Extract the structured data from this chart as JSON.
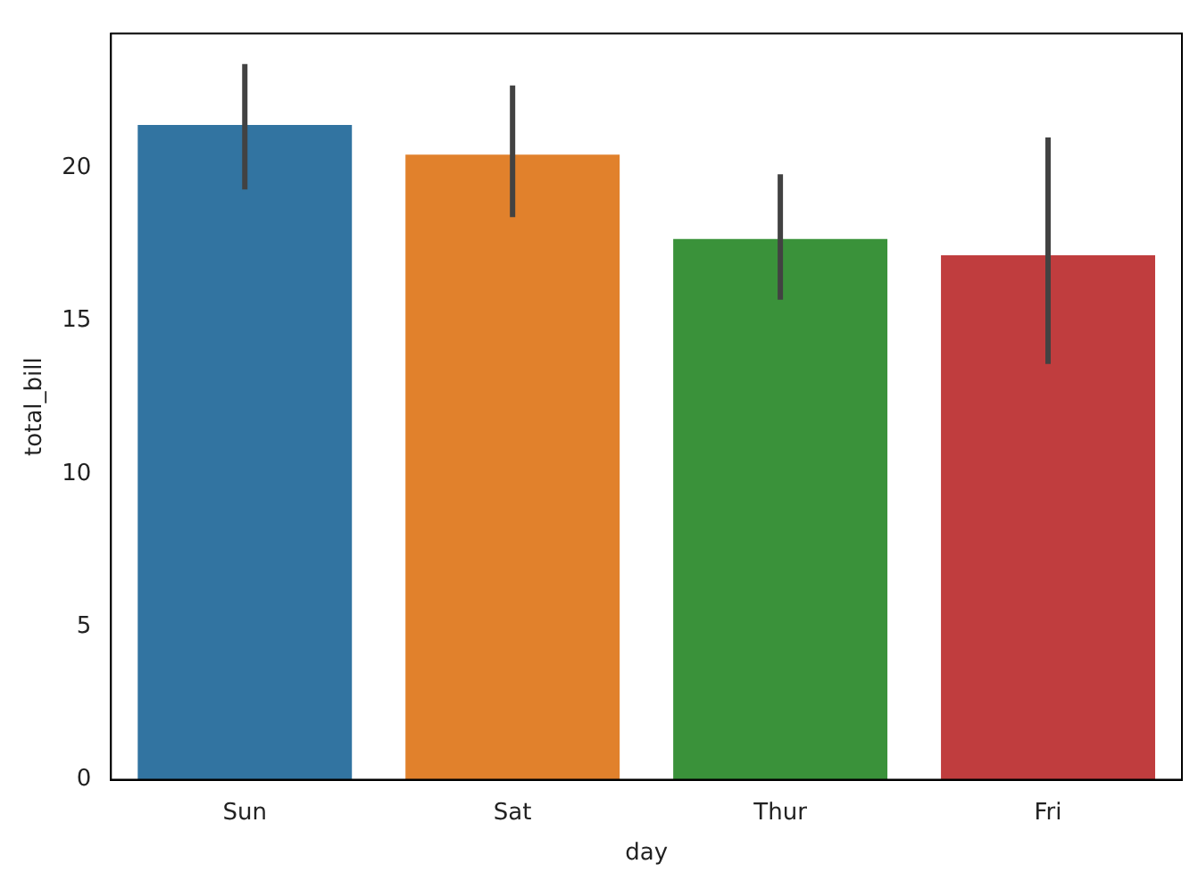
{
  "chart_data": {
    "type": "bar",
    "xlabel": "day",
    "ylabel": "total_bill",
    "categories": [
      "Sun",
      "Sat",
      "Thur",
      "Fri"
    ],
    "values": [
      21.41,
      20.44,
      17.68,
      17.15
    ],
    "colors": [
      "#3274a1",
      "#e1812c",
      "#3a923a",
      "#c03d3e"
    ],
    "errors": [
      [
        19.3,
        23.4
      ],
      [
        18.4,
        22.7
      ],
      [
        15.7,
        19.8
      ],
      [
        13.6,
        21.0
      ]
    ],
    "ylim": [
      0,
      24.4
    ],
    "yticks": [
      0,
      5,
      10,
      15,
      20
    ],
    "grid": false,
    "legend": false
  }
}
